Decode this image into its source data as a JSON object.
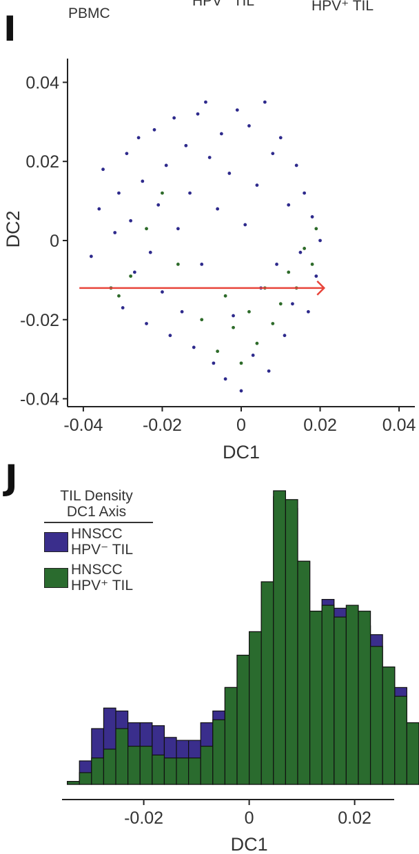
{
  "header": {
    "pbmc_label": "PBMC",
    "hpv_neg_label": "HPV⁻ TIL",
    "hpv_pos_label": "HPV⁺ TIL"
  },
  "panel_i": {
    "letter": "I"
  },
  "panel_j": {
    "letter": "J"
  },
  "chart_data": [
    {
      "type": "scatter",
      "panel": "I",
      "xlabel": "DC1",
      "ylabel": "DC2",
      "xlim": [
        -0.044,
        0.044
      ],
      "ylim": [
        -0.042,
        0.046
      ],
      "xticks": [
        "-0.04",
        "-0.02",
        "0",
        "0.02",
        "0.04"
      ],
      "xtick_values": [
        -0.04,
        -0.02,
        0,
        0.02,
        0.04
      ],
      "yticks": [
        "0.04",
        "0.02",
        "0",
        "-0.02",
        "-0.04"
      ],
      "ytick_values": [
        0.04,
        0.02,
        0,
        -0.02,
        -0.04
      ],
      "colors": {
        "purple": "#2e2a8c",
        "green": "#2e6b2a",
        "arrow": "#e8443a"
      },
      "series": [
        {
          "color": "#2e2a8c",
          "points": [
            [
              -0.038,
              -0.004
            ],
            [
              -0.036,
              0.008
            ],
            [
              -0.035,
              0.018
            ],
            [
              -0.033,
              -0.012
            ],
            [
              -0.032,
              0.002
            ],
            [
              -0.031,
              0.012
            ],
            [
              -0.03,
              -0.017
            ],
            [
              -0.029,
              0.022
            ],
            [
              -0.028,
              0.005
            ],
            [
              -0.027,
              -0.008
            ],
            [
              -0.026,
              0.026
            ],
            [
              -0.025,
              0.015
            ],
            [
              -0.024,
              -0.021
            ],
            [
              -0.023,
              -0.003
            ],
            [
              -0.022,
              0.028
            ],
            [
              -0.021,
              0.009
            ],
            [
              -0.02,
              -0.013
            ],
            [
              -0.019,
              0.019
            ],
            [
              -0.018,
              -0.024
            ],
            [
              -0.017,
              0.031
            ],
            [
              -0.016,
              0.003
            ],
            [
              -0.015,
              -0.018
            ],
            [
              -0.014,
              0.024
            ],
            [
              -0.013,
              0.012
            ],
            [
              -0.012,
              -0.027
            ],
            [
              -0.011,
              0.032
            ],
            [
              -0.01,
              -0.006
            ],
            [
              -0.009,
              0.035
            ],
            [
              -0.008,
              0.021
            ],
            [
              -0.007,
              -0.031
            ],
            [
              -0.006,
              0.008
            ],
            [
              -0.005,
              0.027
            ],
            [
              -0.004,
              -0.035
            ],
            [
              -0.003,
              0.017
            ],
            [
              -0.002,
              -0.019
            ],
            [
              -0.001,
              0.033
            ],
            [
              0.0,
              -0.038
            ],
            [
              0.001,
              0.004
            ],
            [
              0.002,
              0.029
            ],
            [
              0.003,
              -0.029
            ],
            [
              0.004,
              0.014
            ],
            [
              0.005,
              -0.012
            ],
            [
              0.006,
              0.035
            ],
            [
              0.007,
              -0.033
            ],
            [
              0.008,
              0.022
            ],
            [
              0.009,
              -0.006
            ],
            [
              0.01,
              0.026
            ],
            [
              0.011,
              -0.024
            ],
            [
              0.012,
              0.009
            ],
            [
              0.013,
              -0.016
            ],
            [
              0.014,
              0.019
            ],
            [
              0.015,
              -0.003
            ],
            [
              0.016,
              0.012
            ],
            [
              0.017,
              -0.018
            ],
            [
              0.018,
              0.006
            ],
            [
              0.019,
              -0.009
            ],
            [
              0.02,
              0.0
            ]
          ]
        },
        {
          "color": "#2e6b2a",
          "points": [
            [
              -0.033,
              -0.012
            ],
            [
              -0.031,
              -0.014
            ],
            [
              -0.028,
              -0.009
            ],
            [
              -0.024,
              0.003
            ],
            [
              -0.02,
              0.012
            ],
            [
              -0.016,
              -0.006
            ],
            [
              -0.01,
              -0.02
            ],
            [
              -0.006,
              -0.028
            ],
            [
              -0.004,
              -0.014
            ],
            [
              -0.002,
              -0.022
            ],
            [
              0.0,
              -0.031
            ],
            [
              0.002,
              -0.018
            ],
            [
              0.004,
              -0.026
            ],
            [
              0.006,
              -0.012
            ],
            [
              0.008,
              -0.021
            ],
            [
              0.01,
              -0.016
            ],
            [
              0.012,
              -0.008
            ],
            [
              0.014,
              -0.012
            ],
            [
              0.016,
              -0.002
            ],
            [
              0.018,
              -0.006
            ],
            [
              0.019,
              0.003
            ]
          ]
        }
      ],
      "arrow": {
        "x_start": -0.041,
        "x_end": 0.021,
        "y": -0.012
      }
    },
    {
      "type": "bar",
      "panel": "J",
      "xlabel": "DC1",
      "legend_title_line1": "TIL Density",
      "legend_title_line2": "DC1 Axis",
      "legend": [
        {
          "line1": "HNSCC",
          "line2": "HPV⁻ TIL",
          "color": "#3a2e8c"
        },
        {
          "line1": "HNSCC",
          "line2": "HPV⁺ TIL",
          "color": "#2a6b2e"
        }
      ],
      "legend_placement": "top-left",
      "xlim": [
        -0.0355,
        0.0275
      ],
      "xticks": [
        "-0.02",
        "0",
        "0.02"
      ],
      "xtick_values": [
        -0.02,
        0,
        0.02
      ],
      "bin_start": -0.0345,
      "bin_width": 0.0023,
      "ymax": 100,
      "series": [
        {
          "name": "HNSCC HPV⁻ TIL",
          "color": "#3a2e8c",
          "values": [
            1,
            8,
            19,
            26,
            25,
            21,
            21,
            20,
            16,
            15,
            15,
            21,
            25,
            33,
            44,
            52,
            69,
            98,
            94,
            76,
            59,
            63,
            60,
            52,
            54,
            51,
            40,
            33,
            21,
            8,
            1
          ]
        },
        {
          "name": "HNSCC HPV⁺ TIL",
          "color": "#2a6b2e",
          "values": [
            1,
            4,
            9,
            12,
            19,
            13,
            13,
            10,
            9,
            9,
            9,
            13,
            22,
            33,
            44,
            52,
            69,
            100,
            97,
            76,
            59,
            61,
            57,
            61,
            59,
            47,
            40,
            30,
            21,
            8,
            1
          ]
        }
      ]
    }
  ]
}
